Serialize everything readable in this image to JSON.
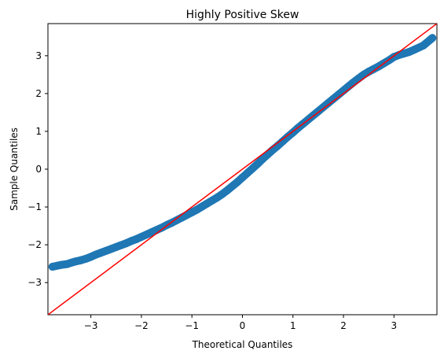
{
  "chart_data": {
    "type": "scatter",
    "title": "Highly Positive Skew",
    "xlabel": "Theoretical Quantiles",
    "ylabel": "Sample Quantiles",
    "xlim": [
      -3.85,
      3.85
    ],
    "ylim": [
      -3.85,
      3.85
    ],
    "xticks": [
      -3,
      -2,
      -1,
      0,
      1,
      2,
      3
    ],
    "yticks": [
      -3,
      -2,
      -1,
      0,
      1,
      2,
      3
    ],
    "grid": false,
    "point_color": "#1f77b4",
    "line_color": "#ff0000",
    "reference_line": {
      "slope": 1,
      "intercept": 0
    },
    "points": [
      [
        -3.76,
        -2.58
      ],
      [
        -3.58,
        -2.53
      ],
      [
        -3.47,
        -2.51
      ],
      [
        -3.38,
        -2.47
      ],
      [
        -3.3,
        -2.44
      ],
      [
        -3.2,
        -2.41
      ],
      [
        -3.1,
        -2.37
      ],
      [
        -3.0,
        -2.32
      ],
      [
        -2.9,
        -2.26
      ],
      [
        -2.8,
        -2.21
      ],
      [
        -2.7,
        -2.16
      ],
      [
        -2.6,
        -2.11
      ],
      [
        -2.5,
        -2.06
      ],
      [
        -2.4,
        -2.01
      ],
      [
        -2.3,
        -1.96
      ],
      [
        -2.2,
        -1.9
      ],
      [
        -2.1,
        -1.85
      ],
      [
        -2.0,
        -1.79
      ],
      [
        -1.9,
        -1.73
      ],
      [
        -1.8,
        -1.67
      ],
      [
        -1.7,
        -1.61
      ],
      [
        -1.6,
        -1.55
      ],
      [
        -1.5,
        -1.48
      ],
      [
        -1.4,
        -1.42
      ],
      [
        -1.3,
        -1.35
      ],
      [
        -1.2,
        -1.28
      ],
      [
        -1.1,
        -1.21
      ],
      [
        -1.0,
        -1.14
      ],
      [
        -0.9,
        -1.07
      ],
      [
        -0.8,
        -0.99
      ],
      [
        -0.7,
        -0.91
      ],
      [
        -0.6,
        -0.83
      ],
      [
        -0.5,
        -0.75
      ],
      [
        -0.4,
        -0.66
      ],
      [
        -0.3,
        -0.56
      ],
      [
        -0.2,
        -0.45
      ],
      [
        -0.1,
        -0.34
      ],
      [
        0.0,
        -0.22
      ],
      [
        0.1,
        -0.1
      ],
      [
        0.2,
        0.02
      ],
      [
        0.3,
        0.14
      ],
      [
        0.4,
        0.27
      ],
      [
        0.5,
        0.39
      ],
      [
        0.6,
        0.51
      ],
      [
        0.7,
        0.62
      ],
      [
        0.8,
        0.74
      ],
      [
        0.9,
        0.86
      ],
      [
        1.0,
        0.97
      ],
      [
        1.1,
        1.09
      ],
      [
        1.2,
        1.2
      ],
      [
        1.3,
        1.31
      ],
      [
        1.4,
        1.42
      ],
      [
        1.5,
        1.53
      ],
      [
        1.6,
        1.64
      ],
      [
        1.7,
        1.75
      ],
      [
        1.8,
        1.86
      ],
      [
        1.9,
        1.97
      ],
      [
        2.0,
        2.08
      ],
      [
        2.1,
        2.19
      ],
      [
        2.2,
        2.3
      ],
      [
        2.3,
        2.4
      ],
      [
        2.4,
        2.5
      ],
      [
        2.5,
        2.58
      ],
      [
        2.6,
        2.65
      ],
      [
        2.7,
        2.72
      ],
      [
        2.8,
        2.8
      ],
      [
        2.9,
        2.88
      ],
      [
        3.0,
        2.97
      ],
      [
        3.1,
        3.02
      ],
      [
        3.2,
        3.06
      ],
      [
        3.3,
        3.1
      ],
      [
        3.4,
        3.16
      ],
      [
        3.58,
        3.27
      ],
      [
        3.76,
        3.47
      ]
    ]
  }
}
